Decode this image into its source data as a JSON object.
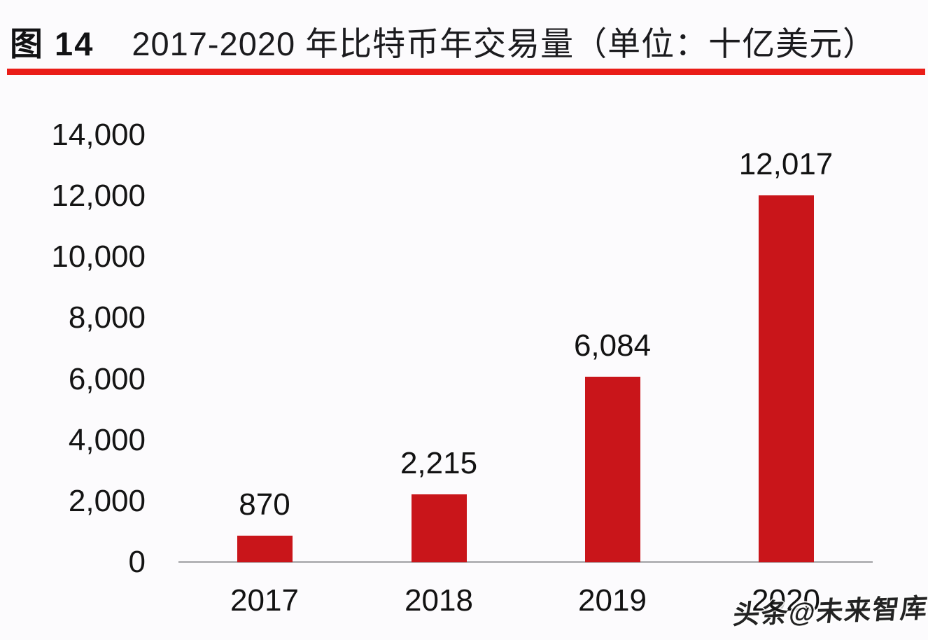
{
  "figure": {
    "label": "图 14",
    "title": "2017-2020 年比特币年交易量（单位：十亿美元）"
  },
  "chart_data": {
    "type": "bar",
    "title": "2017-2020 年比特币年交易量（单位：十亿美元）",
    "xlabel": "",
    "ylabel": "",
    "unit": "十亿美元",
    "categories": [
      "2017",
      "2018",
      "2019",
      "2020"
    ],
    "values": [
      870,
      2215,
      6084,
      12017
    ],
    "value_labels": [
      "870",
      "2,215",
      "6,084",
      "12,017"
    ],
    "ylim": [
      0,
      14000
    ],
    "y_ticks": [
      {
        "v": 0,
        "label": "0"
      },
      {
        "v": 2000,
        "label": "2,000"
      },
      {
        "v": 4000,
        "label": "4,000"
      },
      {
        "v": 6000,
        "label": "6,000"
      },
      {
        "v": 8000,
        "label": "8,000"
      },
      {
        "v": 10000,
        "label": "10,000"
      },
      {
        "v": 12000,
        "label": "12,000"
      },
      {
        "v": 14000,
        "label": "14,000"
      }
    ],
    "grid": false,
    "legend": null,
    "bar_color": "#c9151a",
    "axis_line_color": "#b4b4b7"
  },
  "colors": {
    "title_text": "#1b1b1e",
    "title_rule": "#ea1d18",
    "background": "#fcfbfd",
    "label_text": "#121212"
  },
  "watermark": {
    "text": "头条@未来智库"
  }
}
